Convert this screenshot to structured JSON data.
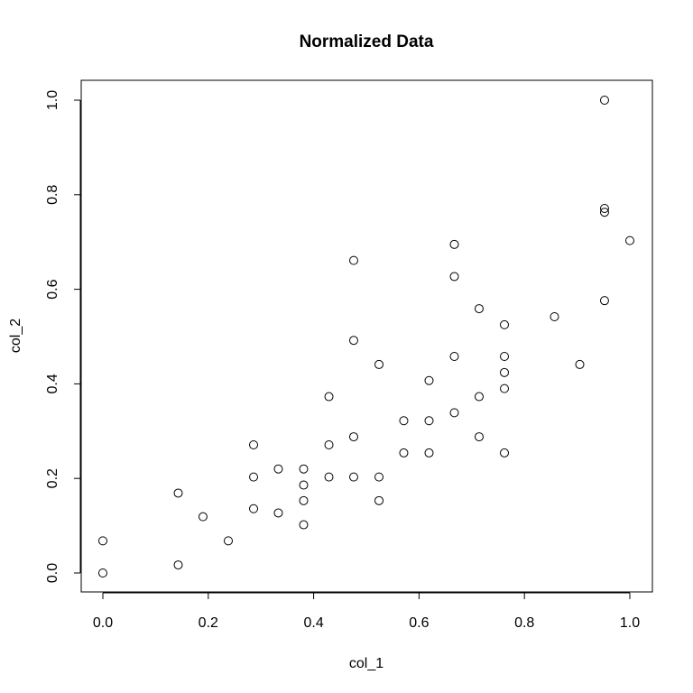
{
  "chart_data": {
    "type": "scatter",
    "title": "Normalized Data",
    "xlabel": "col_1",
    "ylabel": "col_2",
    "xlim": [
      0.0,
      1.0
    ],
    "ylim": [
      0.0,
      1.0
    ],
    "x_ticks": [
      "0.0",
      "0.2",
      "0.4",
      "0.6",
      "0.8",
      "1.0"
    ],
    "y_ticks": [
      "0.0",
      "0.2",
      "0.4",
      "0.6",
      "0.8",
      "1.0"
    ],
    "grid": false,
    "marker": "open-circle",
    "series": [
      {
        "points": [
          [
            0.0,
            0.0
          ],
          [
            0.0,
            0.068
          ],
          [
            0.143,
            0.017
          ],
          [
            0.143,
            0.169
          ],
          [
            0.19,
            0.119
          ],
          [
            0.238,
            0.068
          ],
          [
            0.286,
            0.136
          ],
          [
            0.286,
            0.203
          ],
          [
            0.286,
            0.271
          ],
          [
            0.333,
            0.127
          ],
          [
            0.333,
            0.22
          ],
          [
            0.381,
            0.102
          ],
          [
            0.381,
            0.153
          ],
          [
            0.381,
            0.186
          ],
          [
            0.381,
            0.22
          ],
          [
            0.429,
            0.203
          ],
          [
            0.429,
            0.271
          ],
          [
            0.429,
            0.373
          ],
          [
            0.476,
            0.203
          ],
          [
            0.476,
            0.288
          ],
          [
            0.476,
            0.492
          ],
          [
            0.476,
            0.661
          ],
          [
            0.524,
            0.153
          ],
          [
            0.524,
            0.203
          ],
          [
            0.524,
            0.441
          ],
          [
            0.571,
            0.254
          ],
          [
            0.571,
            0.322
          ],
          [
            0.619,
            0.254
          ],
          [
            0.619,
            0.322
          ],
          [
            0.619,
            0.407
          ],
          [
            0.667,
            0.339
          ],
          [
            0.667,
            0.458
          ],
          [
            0.667,
            0.627
          ],
          [
            0.667,
            0.695
          ],
          [
            0.714,
            0.288
          ],
          [
            0.714,
            0.373
          ],
          [
            0.714,
            0.559
          ],
          [
            0.762,
            0.254
          ],
          [
            0.762,
            0.39
          ],
          [
            0.762,
            0.424
          ],
          [
            0.762,
            0.458
          ],
          [
            0.762,
            0.525
          ],
          [
            0.857,
            0.542
          ],
          [
            0.905,
            0.441
          ],
          [
            0.952,
            0.576
          ],
          [
            0.952,
            0.763
          ],
          [
            0.952,
            0.771
          ],
          [
            0.952,
            1.0
          ],
          [
            1.0,
            0.703
          ]
        ]
      }
    ]
  }
}
